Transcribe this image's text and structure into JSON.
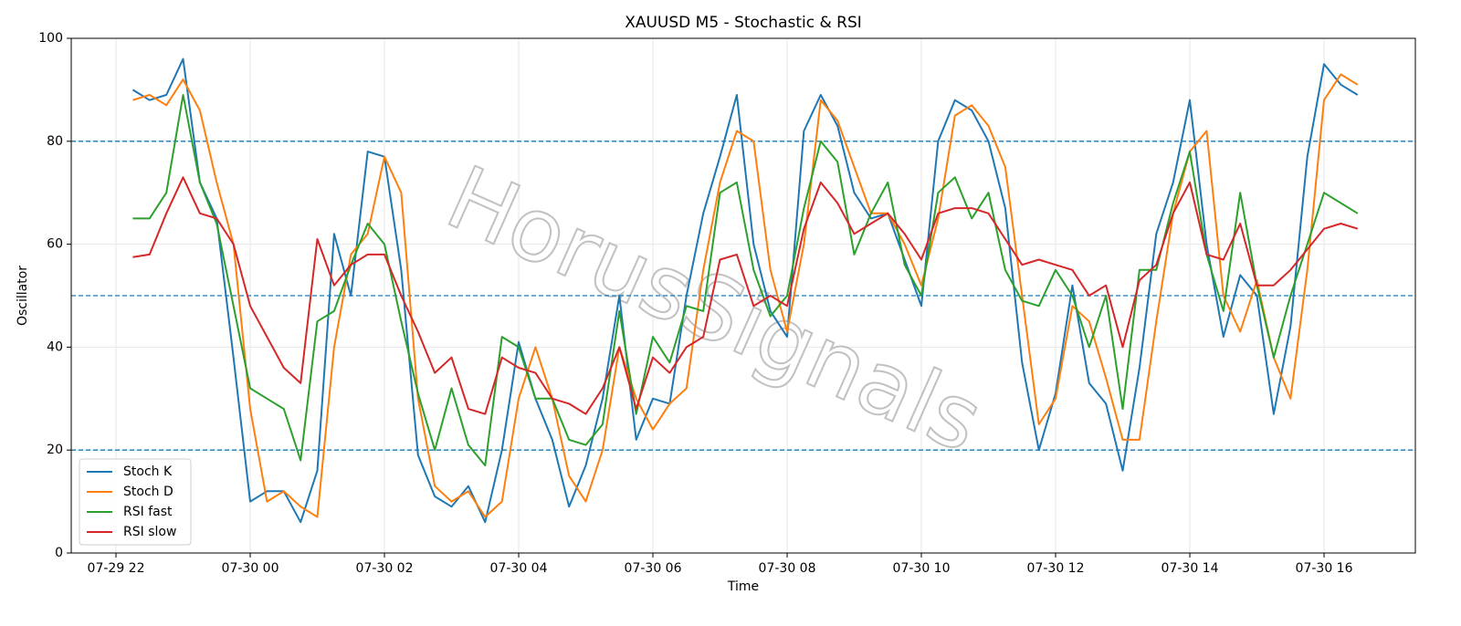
{
  "chart_data": {
    "type": "line",
    "title": "XAUUSD M5 - Stochastic & RSI",
    "xlabel": "Time",
    "ylabel": "Oscillator",
    "watermark": "HorusSignals",
    "x": [
      -1.75,
      -1.5,
      -1.25,
      -1,
      -0.75,
      -0.5,
      -0.25,
      0,
      0.25,
      0.5,
      0.75,
      1,
      1.25,
      1.5,
      1.75,
      2,
      2.25,
      2.5,
      2.75,
      3,
      3.25,
      3.5,
      3.75,
      4,
      4.25,
      4.5,
      4.75,
      5,
      5.25,
      5.5,
      5.75,
      6,
      6.25,
      6.5,
      6.75,
      7,
      7.25,
      7.5,
      7.75,
      8,
      8.25,
      8.5,
      8.75,
      9,
      9.25,
      9.5,
      9.75,
      10,
      10.25,
      10.5,
      10.75,
      11,
      11.25,
      11.5,
      11.75,
      12,
      12.25,
      12.5,
      12.75,
      13,
      13.25,
      13.5,
      13.75,
      14,
      14.25,
      14.5,
      14.75,
      15,
      15.25,
      15.5,
      15.75,
      16,
      16.25,
      16.5
    ],
    "series": [
      {
        "name": "Stoch K",
        "color": "#1f77b4",
        "values": [
          90,
          88,
          89,
          96,
          72,
          65,
          38,
          10,
          12,
          12,
          6,
          16,
          62,
          50,
          78,
          77,
          55,
          19,
          11,
          9,
          13,
          6,
          20,
          41,
          30,
          22,
          9,
          17,
          30,
          50,
          22,
          30,
          29,
          50,
          66,
          77,
          89,
          60,
          47,
          42,
          82,
          89,
          83,
          70,
          65,
          66,
          57,
          48,
          80,
          88,
          86,
          80,
          67,
          37,
          20,
          31,
          52,
          33,
          29,
          16,
          36,
          62,
          72,
          88,
          60,
          42,
          54,
          50,
          27,
          44,
          77,
          95,
          91,
          89
        ]
      },
      {
        "name": "Stoch D",
        "color": "#ff7f0e",
        "values": [
          88,
          89,
          87,
          92,
          86,
          72,
          60,
          28,
          10,
          12,
          9,
          7,
          40,
          58,
          62,
          77,
          70,
          30,
          13,
          10,
          12,
          7,
          10,
          30,
          40,
          30,
          15,
          10,
          20,
          40,
          30,
          24,
          29,
          32,
          55,
          72,
          82,
          80,
          55,
          43,
          60,
          88,
          84,
          75,
          66,
          66,
          60,
          52,
          65,
          85,
          87,
          83,
          75,
          50,
          25,
          30,
          48,
          45,
          34,
          22,
          22,
          45,
          66,
          78,
          82,
          50,
          43,
          53,
          38,
          30,
          55,
          88,
          93,
          91
        ]
      },
      {
        "name": "RSI fast",
        "color": "#2ca02c",
        "values": [
          65,
          65,
          70,
          89,
          72,
          64,
          48,
          32,
          30,
          28,
          18,
          45,
          47,
          56,
          64,
          60,
          45,
          31,
          20,
          32,
          21,
          17,
          42,
          40,
          30,
          30,
          22,
          21,
          25,
          47,
          27,
          42,
          37,
          48,
          47,
          70,
          72,
          55,
          46,
          50,
          67,
          80,
          76,
          58,
          66,
          72,
          56,
          50,
          70,
          73,
          65,
          70,
          55,
          49,
          48,
          55,
          50,
          40,
          50,
          28,
          55,
          55,
          68,
          78,
          58,
          47,
          70,
          52,
          38,
          50,
          60,
          70,
          68,
          66
        ]
      },
      {
        "name": "RSI slow",
        "color": "#d62728",
        "values": [
          57.5,
          58,
          66,
          73,
          66,
          65,
          60,
          48,
          42,
          36,
          33,
          61,
          52,
          56,
          58,
          58,
          50,
          43,
          35,
          38,
          28,
          27,
          38,
          36,
          35,
          30,
          29,
          27,
          32,
          40,
          28,
          38,
          35,
          40,
          42,
          57,
          58,
          48,
          50,
          48,
          63,
          72,
          68,
          62,
          64,
          66,
          62,
          57,
          66,
          67,
          67,
          66,
          61,
          56,
          57,
          56,
          55,
          50,
          52,
          40,
          53,
          56,
          66,
          72,
          58,
          57,
          64,
          52,
          52,
          55,
          59,
          63,
          64,
          63
        ]
      }
    ],
    "xlim": [
      -2.667,
      17.36
    ],
    "xticks": [
      {
        "value": -2,
        "label": "07-29 22"
      },
      {
        "value": 0,
        "label": "07-30 00"
      },
      {
        "value": 2,
        "label": "07-30 02"
      },
      {
        "value": 4,
        "label": "07-30 04"
      },
      {
        "value": 6,
        "label": "07-30 06"
      },
      {
        "value": 8,
        "label": "07-30 08"
      },
      {
        "value": 10,
        "label": "07-30 10"
      },
      {
        "value": 12,
        "label": "07-30 12"
      },
      {
        "value": 14,
        "label": "07-30 14"
      },
      {
        "value": 16,
        "label": "07-30 16"
      }
    ],
    "ylim": [
      0,
      100
    ],
    "yticks": [
      0,
      20,
      40,
      60,
      80,
      100
    ],
    "hlines": [
      80,
      50,
      20
    ],
    "hline_color": "#1f77b4",
    "grid": true,
    "legend": "lower left"
  }
}
